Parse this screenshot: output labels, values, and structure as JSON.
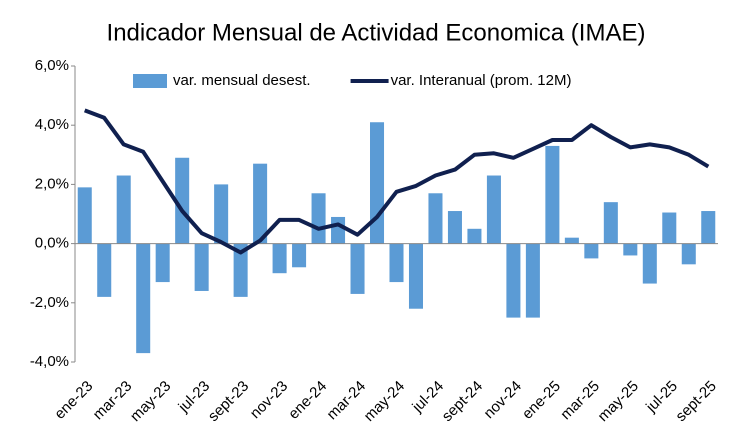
{
  "chart_data": {
    "type": "bar_line",
    "title": "Indicador Mensual de Actividad Economica (IMAE)",
    "categories": [
      "ene-23",
      null,
      "mar-23",
      null,
      "may-23",
      null,
      "jul-23",
      null,
      "sept-23",
      null,
      "nov-23",
      null,
      "ene-24",
      null,
      "mar-24",
      null,
      "may-24",
      null,
      "jul-24",
      null,
      "sept-24",
      null,
      "nov-24",
      null,
      "ene-25",
      null,
      "mar-25",
      null,
      "may-25",
      null,
      "jul-25",
      null,
      "sept-25"
    ],
    "series": [
      {
        "name": "var. mensual desest.",
        "type": "bar",
        "color": "#5b9bd5",
        "values": [
          1.9,
          -1.8,
          2.3,
          -3.7,
          -1.3,
          2.9,
          -1.6,
          2.0,
          -1.8,
          2.7,
          -1.0,
          -0.8,
          1.7,
          0.9,
          -1.7,
          4.1,
          -1.3,
          -2.2,
          1.7,
          1.1,
          0.5,
          2.3,
          -2.5,
          -2.5,
          3.3,
          0.2,
          -0.5,
          1.4,
          -0.4,
          -1.35,
          1.05,
          -0.7,
          1.1
        ]
      },
      {
        "name": "var. Interanual (prom. 12M)",
        "type": "line",
        "color": "#10204f",
        "values": [
          4.5,
          4.25,
          3.35,
          3.1,
          2.1,
          1.1,
          0.35,
          0.05,
          -0.3,
          0.1,
          0.8,
          0.8,
          0.5,
          0.65,
          0.3,
          0.9,
          1.75,
          1.95,
          2.3,
          2.5,
          3.0,
          3.05,
          2.9,
          3.2,
          3.5,
          3.5,
          4.0,
          3.6,
          3.25,
          3.35,
          3.25,
          3.0,
          2.6
        ]
      }
    ],
    "ylim": [
      -4,
      6
    ],
    "yticks": [
      {
        "value": -4,
        "label": "-4,0%"
      },
      {
        "value": -2,
        "label": "-2,0%"
      },
      {
        "value": 0,
        "label": "0,0%"
      },
      {
        "value": 2,
        "label": "2,0%"
      },
      {
        "value": 4,
        "label": "4,0%"
      },
      {
        "value": 6,
        "label": "6,0%"
      }
    ],
    "grid": false,
    "legend": "top"
  }
}
